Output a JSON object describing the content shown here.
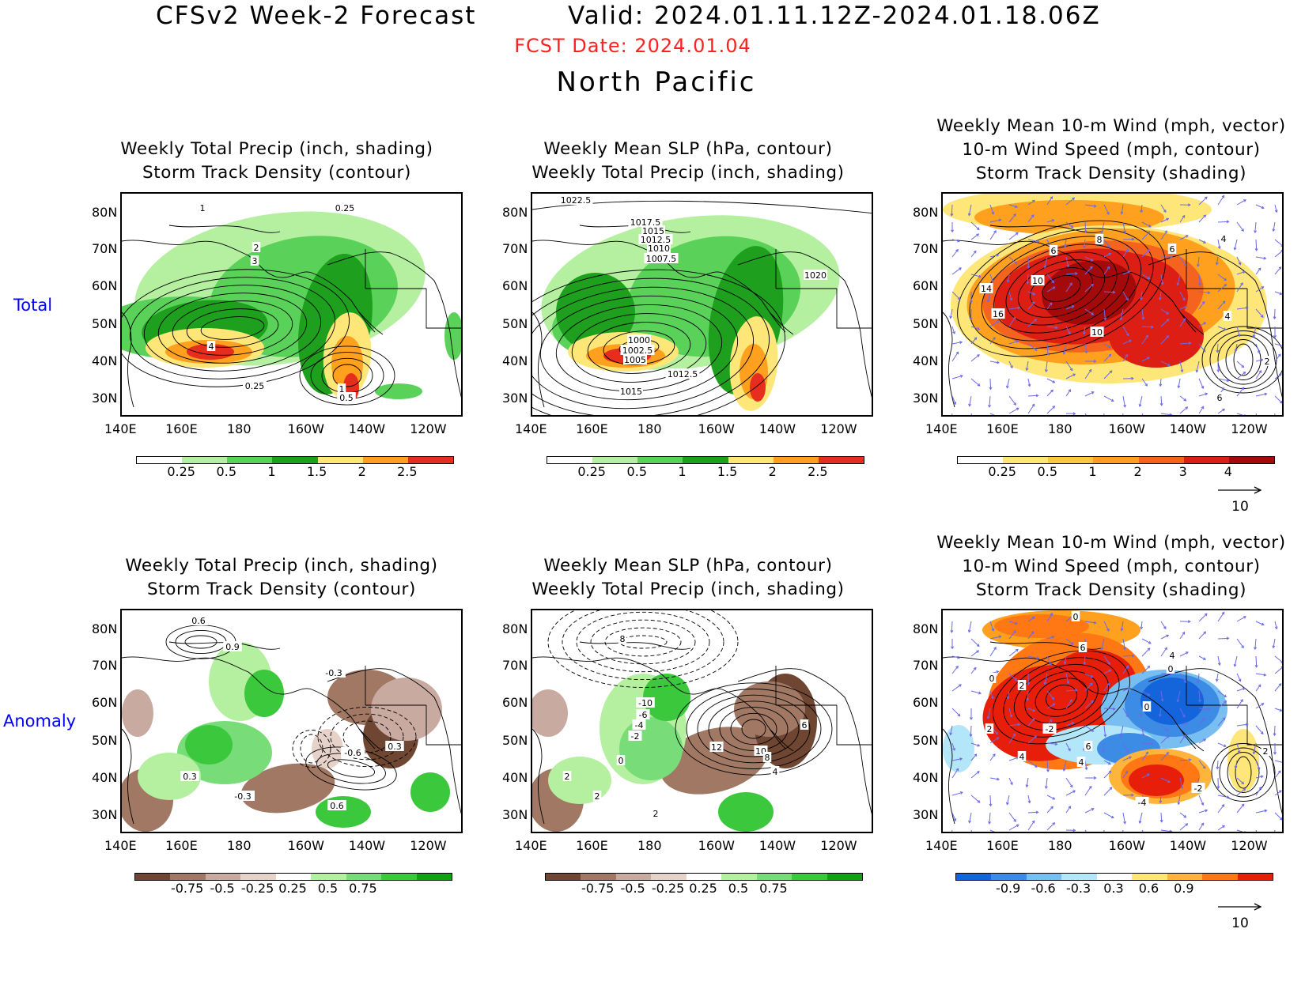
{
  "header": {
    "title_left": "CFSv2 Week-2 Forecast",
    "title_right": "Valid: 2024.01.11.12Z-2024.01.18.06Z",
    "fcst_date": "FCST Date: 2024.01.04",
    "region": "North Pacific"
  },
  "rows": [
    {
      "label": "Total"
    },
    {
      "label": "Anomaly"
    }
  ],
  "panels": {
    "p1": {
      "line1": "Weekly Total Precip (inch, shading)",
      "line2": "Storm Track Density (contour)"
    },
    "p2": {
      "line1": "Weekly Mean SLP (hPa, contour)",
      "line2": "Weekly Total Precip (inch, shading)"
    },
    "p3": {
      "line0": "Weekly Mean 10-m Wind (mph, vector)",
      "line1": "10-m Wind Speed (mph, contour)",
      "line2": "Storm Track Density (shading)"
    },
    "p4": {
      "line1": "Weekly Total Precip (inch, shading)",
      "line2": "Storm Track Density (contour)"
    },
    "p5": {
      "line1": "Weekly Mean SLP (hPa, contour)",
      "line2": "Weekly Total Precip (inch, shading)"
    },
    "p6": {
      "line0": "Weekly Mean 10-m Wind (mph, vector)",
      "line1": "10-m Wind Speed (mph, contour)",
      "line2": "Storm Track Density (shading)"
    }
  },
  "axes": {
    "lat_ticks": [
      "80N",
      "70N",
      "60N",
      "50N",
      "40N",
      "30N"
    ],
    "lon_ticks": [
      "140E",
      "160E",
      "180",
      "160W",
      "140W",
      "120W"
    ]
  },
  "colorbars": {
    "precip_total": {
      "labels": [
        "0.25",
        "0.5",
        "1",
        "1.5",
        "2",
        "2.5"
      ],
      "colors": [
        "#ffffff",
        "#b4f0a0",
        "#5ad25a",
        "#1ea01e",
        "#ffe678",
        "#ffa01e",
        "#e62d1e"
      ]
    },
    "storm_total": {
      "labels": [
        "0.25",
        "0.5",
        "1",
        "2",
        "3",
        "4"
      ],
      "colors": [
        "#ffffff",
        "#ffe678",
        "#ffc83c",
        "#ffa01e",
        "#f5641e",
        "#dc1e14",
        "#a50a0a"
      ]
    },
    "precip_anom": {
      "labels": [
        "-0.75",
        "-0.5",
        "-0.25",
        "0.25",
        "0.5",
        "0.75"
      ],
      "colors": [
        "#6e4632",
        "#a07864",
        "#c8aaa0",
        "#e6d2c8",
        "#ffffff",
        "#b4f0a0",
        "#78dc78",
        "#3cc83c",
        "#14a014"
      ]
    },
    "storm_anom": {
      "labels": [
        "-0.9",
        "-0.6",
        "-0.3",
        "0.3",
        "0.6",
        "0.9"
      ],
      "colors": [
        "#1464dc",
        "#3c8ce6",
        "#78beF0",
        "#b4e6fa",
        "#ffffff",
        "#ffe678",
        "#ffb43c",
        "#ff7814",
        "#e61e0a"
      ]
    }
  },
  "vector_ref": {
    "label": "10"
  },
  "contour_labels": {
    "p1": [
      "1",
      "0.25",
      "2",
      "3",
      "4",
      "0.25",
      "1",
      "0.5"
    ],
    "p2": [
      "1022.5",
      "1017.5",
      "1015",
      "1012.5",
      "1010",
      "1007.5",
      "1020",
      "1000",
      "1002.5",
      "1005",
      "1012.5",
      "1015"
    ],
    "p3": [
      "8",
      "6",
      "6",
      "4",
      "10",
      "14",
      "16",
      "10",
      "4",
      "2",
      "6"
    ],
    "p4": [
      "0.6",
      "0.9",
      "-0.3",
      "-0.6",
      "0.3",
      "0.3",
      "-0.3",
      "0.6"
    ],
    "p5": [
      "8",
      "-10",
      "-6",
      "-4",
      "-2",
      "0",
      "12",
      "10",
      "8",
      "4",
      "6",
      "2",
      "2",
      "2"
    ],
    "p6": [
      "0",
      "6",
      "4",
      "0",
      "2",
      "0",
      "2",
      "-2",
      "4",
      "0",
      "6",
      "4",
      "-2",
      "-4",
      "2"
    ]
  }
}
